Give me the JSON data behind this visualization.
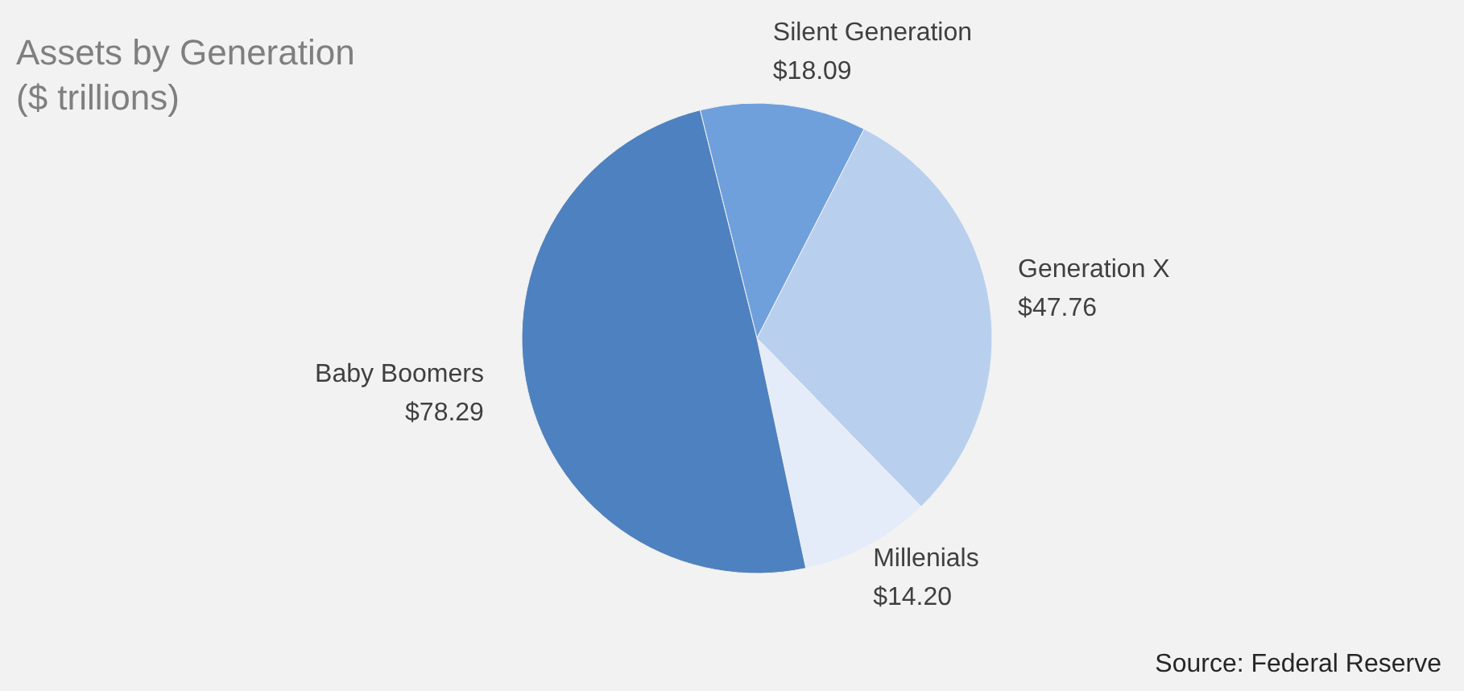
{
  "chart_data": {
    "type": "pie",
    "title": "Assets by Generation",
    "subtitle": "($ trillions)",
    "categories": [
      "Silent Generation",
      "Generation X",
      "Millenials",
      "Baby Boomers"
    ],
    "values": [
      18.09,
      47.76,
      14.2,
      78.29
    ],
    "value_labels": [
      "$18.09",
      "$47.76",
      "$14.20",
      "$78.29"
    ],
    "colors": [
      "#6fa0dc",
      "#b9cfee",
      "#e3ecf8",
      "#4e81bf"
    ],
    "annotations": [
      "Source: Federal Reserve"
    ]
  }
}
